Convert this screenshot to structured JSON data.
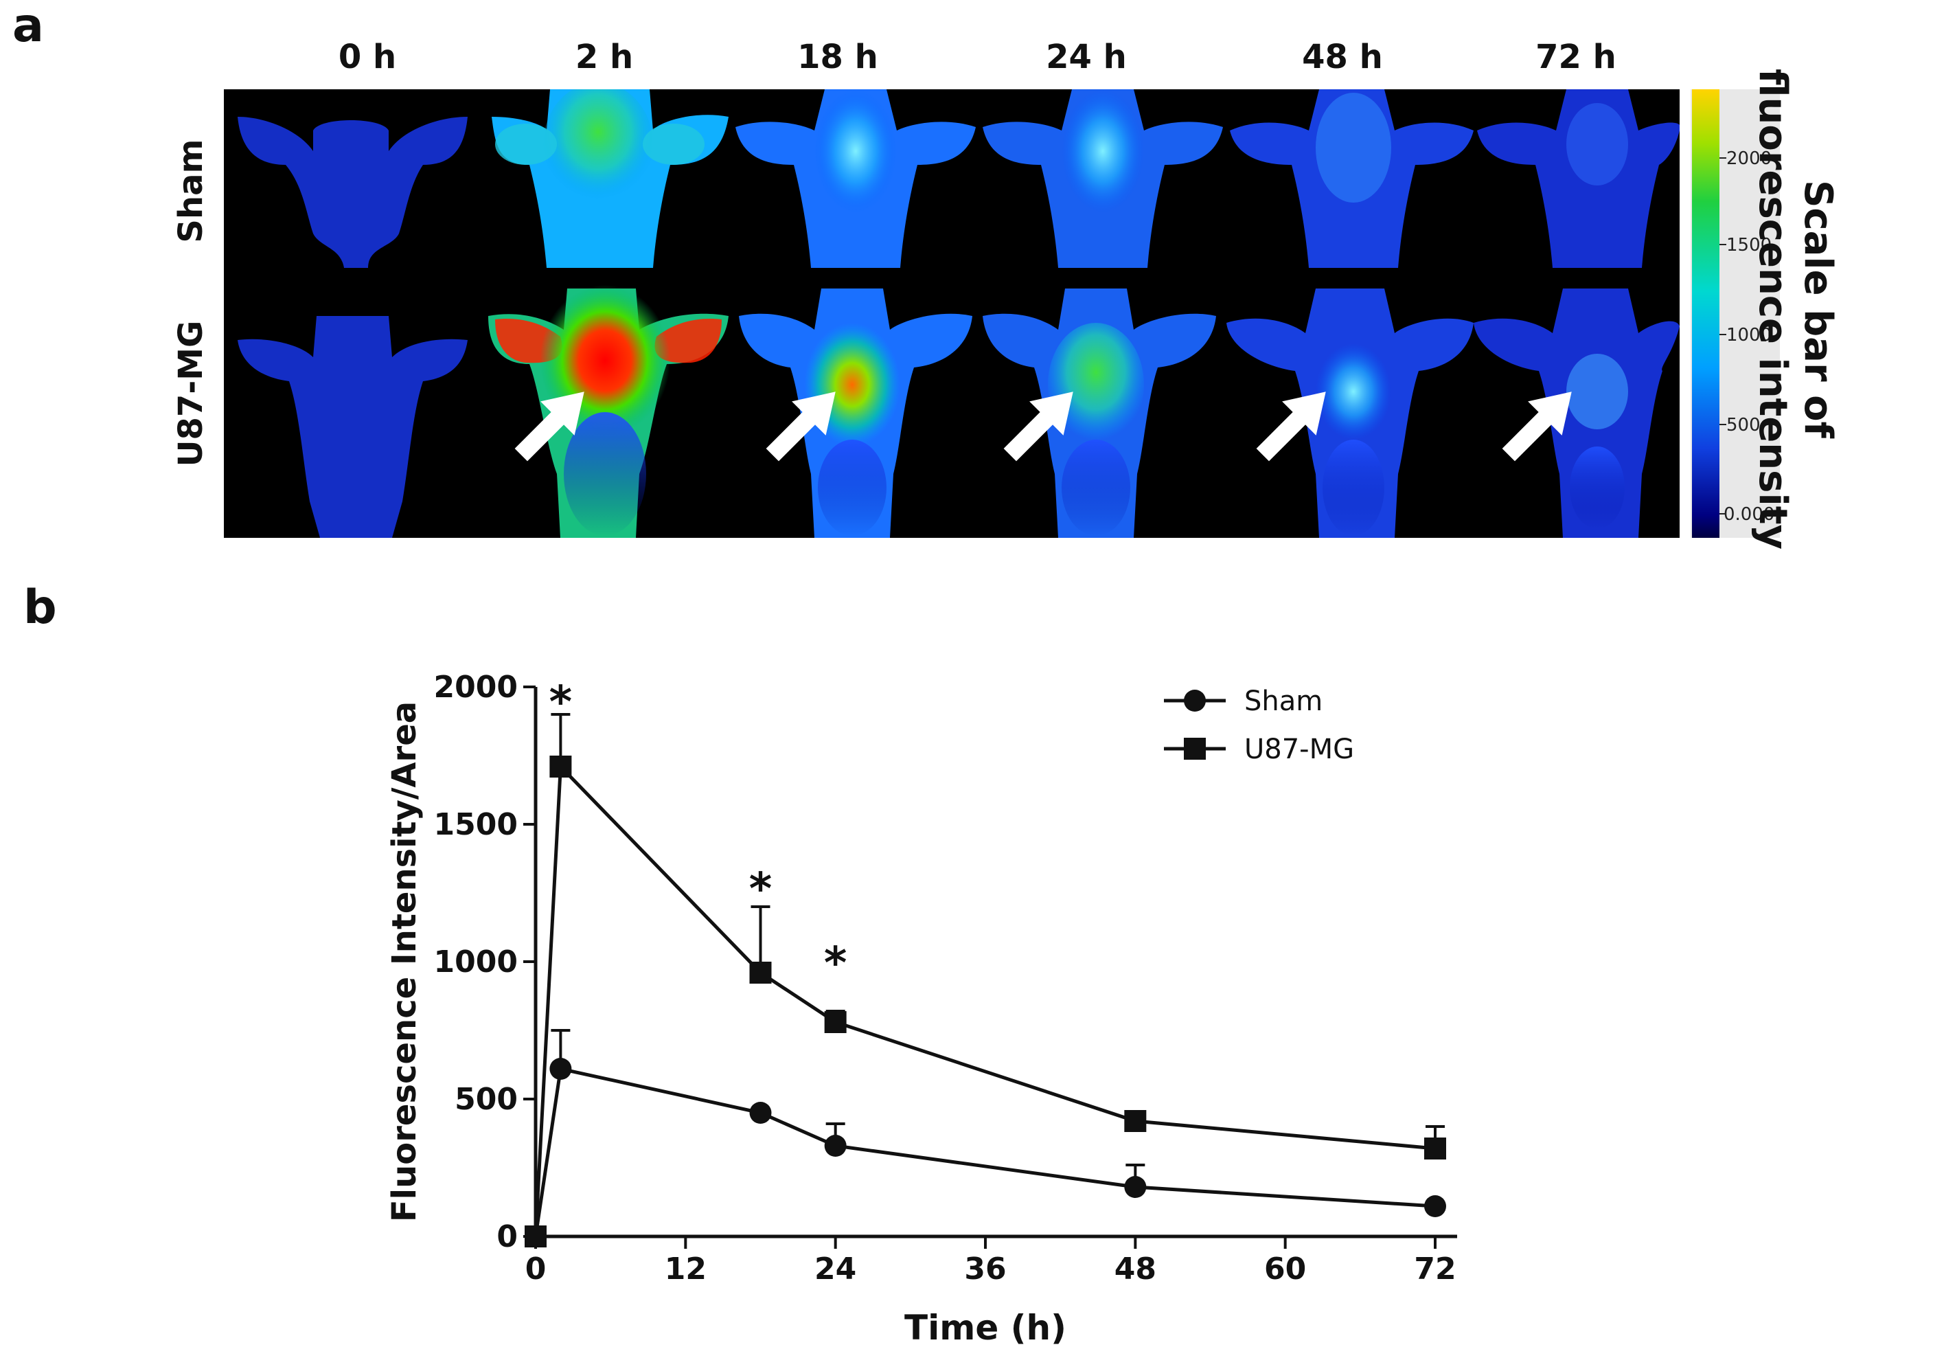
{
  "panel_labels": {
    "a": "a",
    "b": "b"
  },
  "imaging": {
    "time_labels": [
      "0 h",
      "2 h",
      "18 h",
      "24 h",
      "48 h",
      "72 h"
    ],
    "row_labels": [
      "Sham",
      "U87-MG"
    ],
    "colorbar": {
      "ticks": [
        "2000",
        "1500",
        "1000",
        "500",
        "0.0000"
      ],
      "title_line1": "Scale bar of",
      "title_line2": "fluorescence intensity"
    }
  },
  "chart_data": {
    "type": "line",
    "xlabel": "Time (h)",
    "ylabel": "Fluorescence Intensity/Area",
    "xlim": [
      0,
      72
    ],
    "ylim": [
      0,
      2000
    ],
    "xticks": [
      0,
      12,
      24,
      36,
      48,
      60,
      72
    ],
    "yticks": [
      0,
      500,
      1000,
      1500,
      2000
    ],
    "legend_position": "top-right",
    "series": [
      {
        "name": "Sham",
        "marker": "circle",
        "x": [
          0,
          2,
          18,
          24,
          48,
          72
        ],
        "y": [
          0,
          610,
          450,
          330,
          180,
          110
        ],
        "error": [
          0,
          140,
          0,
          80,
          80,
          0
        ]
      },
      {
        "name": "U87-MG",
        "marker": "square",
        "x": [
          0,
          2,
          18,
          24,
          48,
          72
        ],
        "y": [
          0,
          1710,
          960,
          780,
          420,
          320
        ],
        "error": [
          0,
          190,
          240,
          40,
          0,
          80
        ]
      }
    ],
    "annotations": [
      {
        "text": "*",
        "x": 2,
        "y": 1990
      },
      {
        "text": "*",
        "x": 18,
        "y": 1310
      },
      {
        "text": "*",
        "x": 24,
        "y": 1040
      }
    ]
  }
}
